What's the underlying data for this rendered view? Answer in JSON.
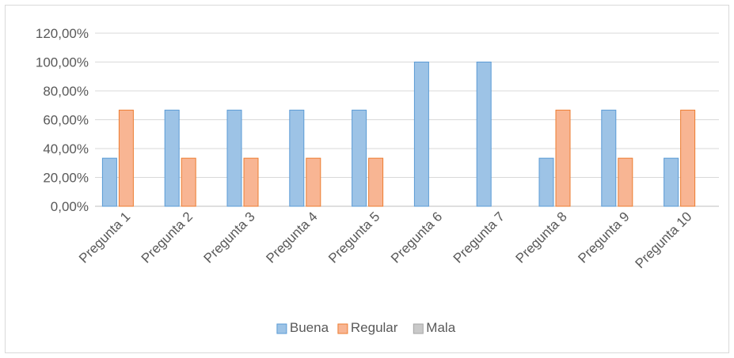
{
  "chart_data": {
    "type": "bar",
    "title": "",
    "xlabel": "",
    "ylabel": "",
    "categories": [
      "Pregunta 1",
      "Pregunta 2",
      "Pregunta 3",
      "Pregunta 4",
      "Pregunta 5",
      "Pregunta 6",
      "Pregunta 7",
      "Pregunta 8",
      "Pregunta 9",
      "Pregunta 10"
    ],
    "series": [
      {
        "name": "Buena",
        "values": [
          33.33,
          66.67,
          66.67,
          66.67,
          66.67,
          100,
          100,
          33.33,
          66.67,
          33.33
        ],
        "color": "#9dc3e6",
        "stroke": "#5b9bd5"
      },
      {
        "name": "Regular",
        "values": [
          66.67,
          33.33,
          33.33,
          33.33,
          33.33,
          0,
          0,
          66.67,
          33.33,
          66.67
        ],
        "color": "#f8b593",
        "stroke": "#ed7d31"
      },
      {
        "name": "Mala",
        "values": [
          0,
          0,
          0,
          0,
          0,
          0,
          0,
          0,
          0,
          0
        ],
        "color": "#c9c9c9",
        "stroke": "#a5a5a5"
      }
    ],
    "ylim": [
      0,
      120
    ],
    "yticks": [
      0,
      20,
      40,
      60,
      80,
      100,
      120
    ],
    "ytick_labels": [
      "0,00%",
      "20,00%",
      "40,00%",
      "60,00%",
      "80,00%",
      "100,00%",
      "120,00%"
    ],
    "grid": true,
    "legend_position": "bottom"
  }
}
